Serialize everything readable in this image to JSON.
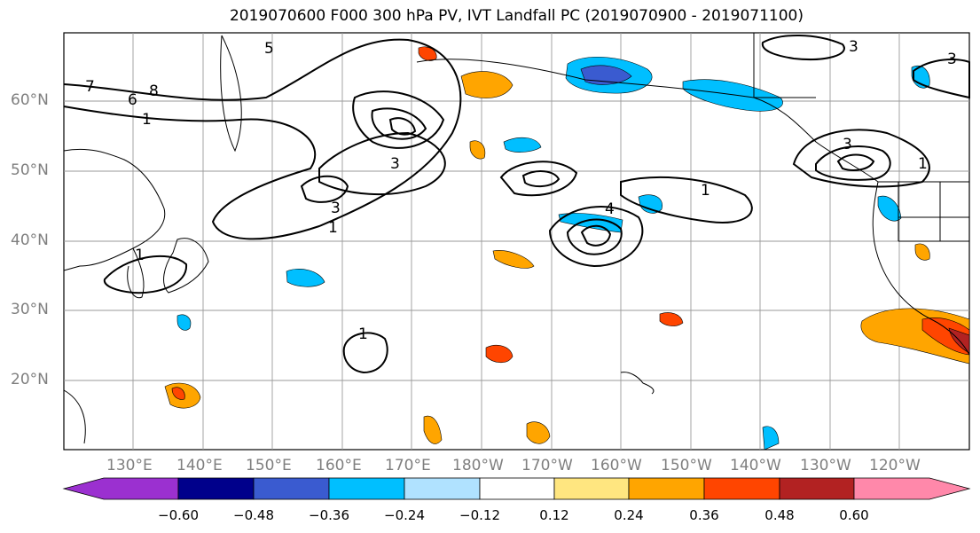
{
  "title": "2019070600 F000 300 hPa PV, IVT Landfall PC (2019070900 - 2019071100)",
  "latitude_labels": [
    "60°N",
    "50°N",
    "40°N",
    "30°N",
    "20°N"
  ],
  "longitude_labels": [
    "130°E",
    "140°E",
    "150°E",
    "160°E",
    "170°E",
    "180°W",
    "170°W",
    "160°W",
    "150°W",
    "140°W",
    "130°W",
    "120°W"
  ],
  "contour_labels": [
    "1",
    "1",
    "1",
    "1",
    "1",
    "1",
    "3",
    "3",
    "3",
    "3",
    "3",
    "4",
    "5",
    "6",
    "7",
    "8"
  ],
  "colorbar": {
    "colors": [
      "#9b30d0",
      "#00008b",
      "#3a5bd0",
      "#00bfff",
      "#b0e2ff",
      "#ffffff",
      "#ffe680",
      "#ffa500",
      "#ff4500",
      "#b22222",
      "#ff88aa"
    ],
    "tick_labels": [
      "−0.60",
      "−0.48",
      "−0.36",
      "−0.24",
      "−0.12",
      "0.12",
      "0.24",
      "0.36",
      "0.48",
      "0.60"
    ]
  }
}
